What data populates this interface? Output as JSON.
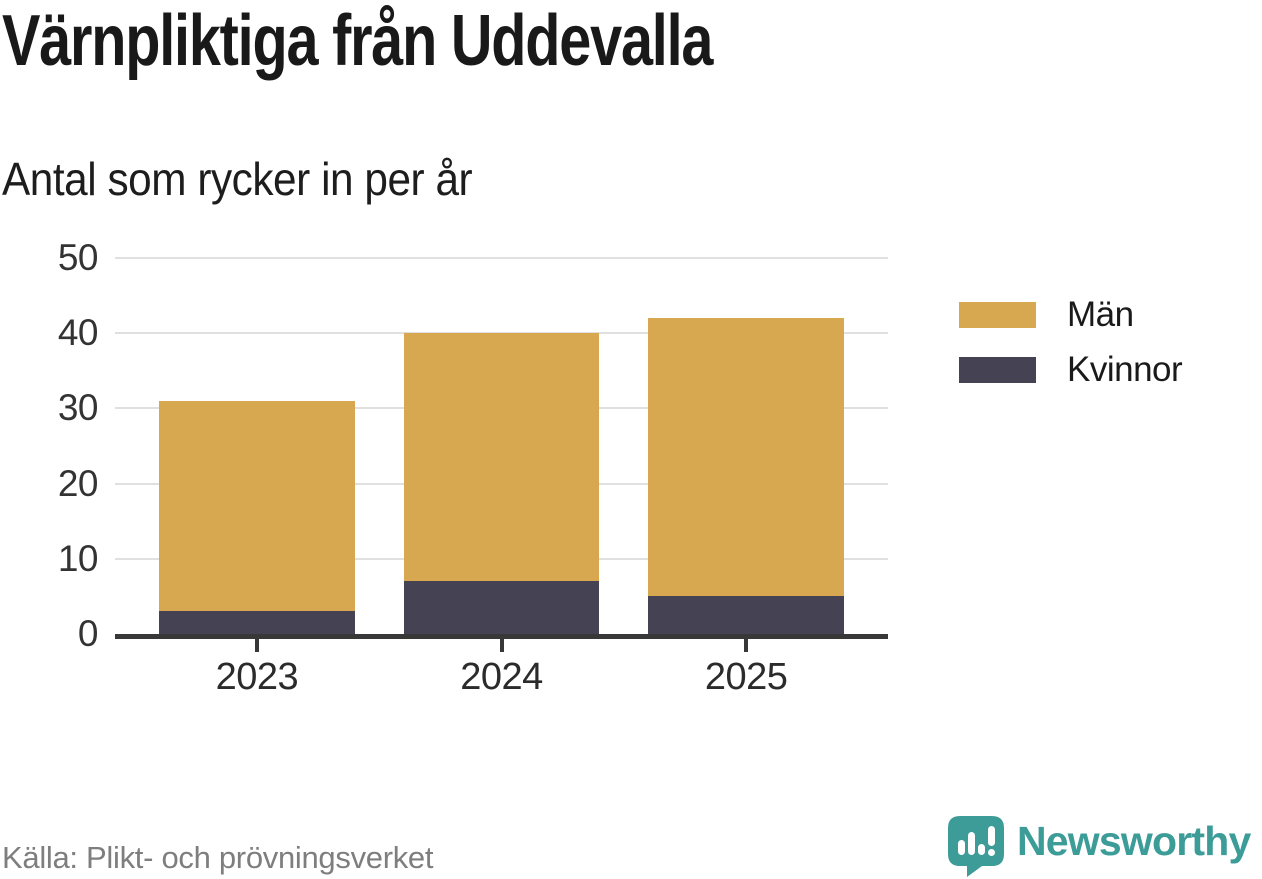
{
  "chart_data": {
    "type": "bar",
    "stacked": true,
    "title": "Värnpliktiga från Uddevalla",
    "subtitle": "Antal som rycker in per år",
    "categories": [
      "2023",
      "2024",
      "2025"
    ],
    "series": [
      {
        "name": "Kvinnor",
        "color": "#454253",
        "values": [
          3,
          7,
          5
        ]
      },
      {
        "name": "Män",
        "color": "#d8a850",
        "values": [
          28,
          33,
          37
        ]
      }
    ],
    "stack_totals": [
      31,
      40,
      42
    ],
    "ylim": [
      0,
      50
    ],
    "y_ticks": [
      0,
      10,
      20,
      30,
      40,
      50
    ],
    "grid": "horizontal",
    "legend_position": "right"
  },
  "legend": {
    "items": [
      {
        "label": "Män",
        "color": "#d8a850"
      },
      {
        "label": "Kvinnor",
        "color": "#454253"
      }
    ]
  },
  "footer": {
    "source": "Källa: Plikt- och prövningsverket",
    "brand": "Newsworthy"
  },
  "colors": {
    "accent_gold": "#d8a850",
    "accent_dark": "#454253",
    "brand_teal": "#3b9c98",
    "axis": "#383838",
    "grid": "#e0e0e0",
    "text": "#1a1a1a",
    "muted": "#7e7e7e"
  }
}
